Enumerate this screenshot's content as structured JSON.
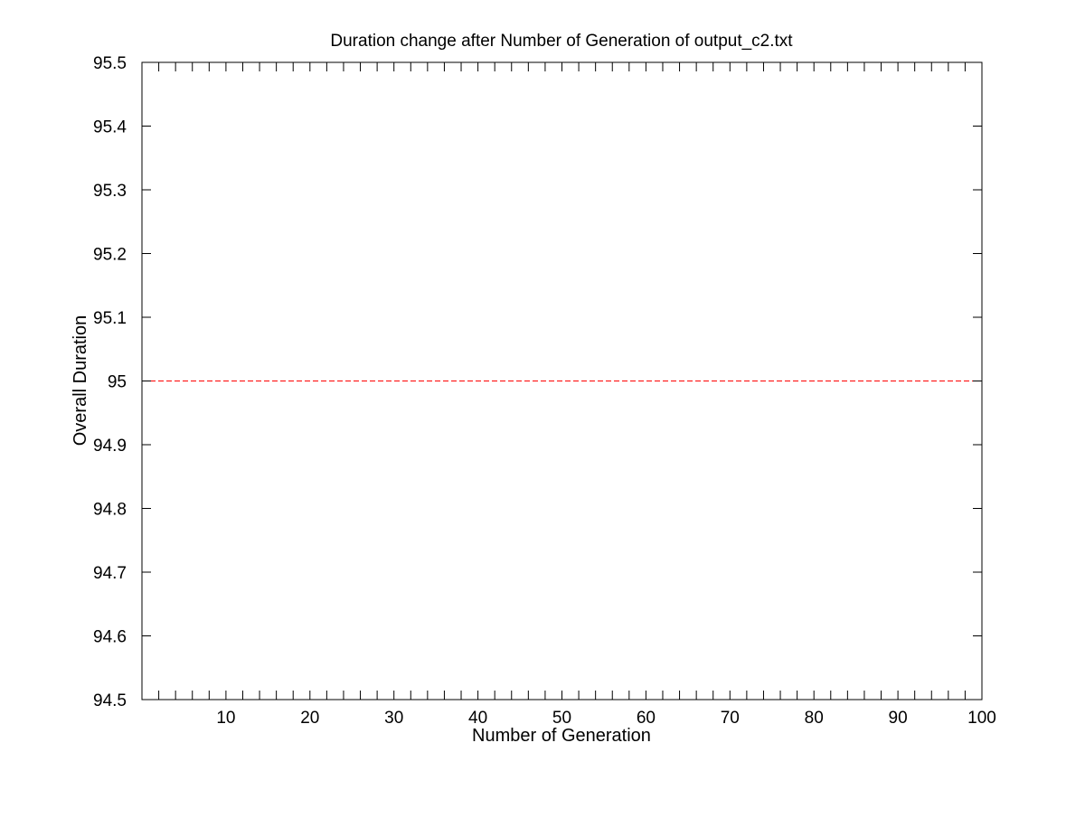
{
  "chart_data": {
    "type": "line",
    "title": "Duration change after Number of Generation of output_c2.txt",
    "xlabel": "Number of Generation",
    "ylabel": "Overall Duration",
    "xlim": [
      0,
      100
    ],
    "ylim": [
      94.5,
      95.5
    ],
    "x_ticks": [
      10,
      20,
      30,
      40,
      50,
      60,
      70,
      80,
      90,
      100
    ],
    "x_tick_labels": [
      "10",
      "20",
      "30",
      "40",
      "50",
      "60",
      "70",
      "80",
      "90",
      "100"
    ],
    "x_minor_tick_step": 2,
    "y_ticks": [
      94.5,
      94.6,
      94.7,
      94.8,
      94.9,
      95.0,
      95.1,
      95.2,
      95.3,
      95.4,
      95.5
    ],
    "y_tick_labels": [
      "94.5",
      "94.6",
      "94.7",
      "94.8",
      "94.9",
      "95",
      "95.1",
      "95.2",
      "95.3",
      "95.4",
      "95.5"
    ],
    "grid": false,
    "series": [
      {
        "line_style": "dashed",
        "color": "#ff0000",
        "x": [
          0,
          100
        ],
        "y": [
          95,
          95
        ]
      }
    ]
  }
}
